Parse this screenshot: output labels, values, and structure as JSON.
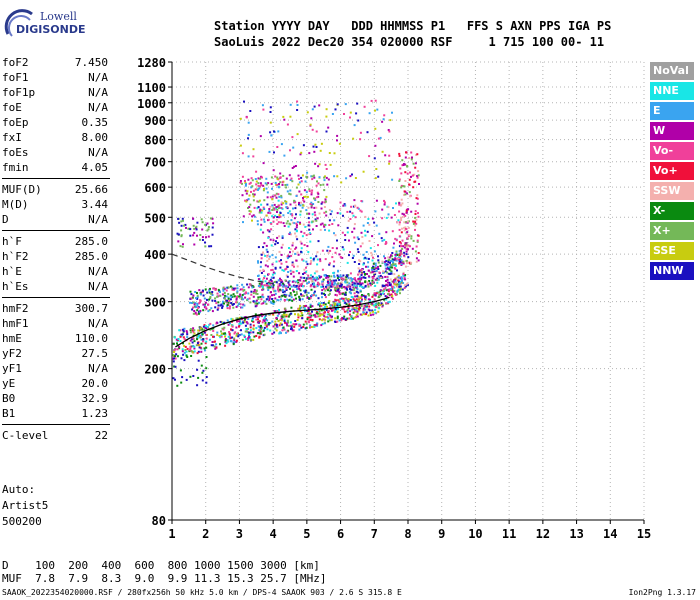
{
  "logo": {
    "line1": "Lowell",
    "line2": "DIGISONDE"
  },
  "header": {
    "line1": "Station YYYY DAY   DDD HHMMSS P1   FFS S AXN PPS IGA PS",
    "line2": "SaoLuis 2022 Dec20 354 020000 RSF     1 715 100 00- 11"
  },
  "params": {
    "group1": [
      {
        "name": "foF2",
        "value": "7.450"
      },
      {
        "name": "foF1",
        "value": "N/A"
      },
      {
        "name": "foF1p",
        "value": "N/A"
      },
      {
        "name": "foE",
        "value": "N/A"
      },
      {
        "name": "foEp",
        "value": "0.35"
      },
      {
        "name": "fxI",
        "value": "8.00"
      },
      {
        "name": "foEs",
        "value": "N/A"
      },
      {
        "name": "fmin",
        "value": "4.05"
      }
    ],
    "group2": [
      {
        "name": "MUF(D)",
        "value": "25.66"
      },
      {
        "name": "M(D)",
        "value": "3.44"
      },
      {
        "name": "D",
        "value": "N/A"
      }
    ],
    "group3": [
      {
        "name": "h`F",
        "value": "285.0"
      },
      {
        "name": "h`F2",
        "value": "285.0"
      },
      {
        "name": "h`E",
        "value": "N/A"
      },
      {
        "name": "h`Es",
        "value": "N/A"
      }
    ],
    "group4": [
      {
        "name": "hmF2",
        "value": "300.7"
      },
      {
        "name": "hmF1",
        "value": "N/A"
      },
      {
        "name": "hmE",
        "value": "110.0"
      },
      {
        "name": "yF2",
        "value": "27.5"
      },
      {
        "name": "yF1",
        "value": "N/A"
      },
      {
        "name": "yE",
        "value": "20.0"
      },
      {
        "name": "B0",
        "value": "32.9"
      },
      {
        "name": "B1",
        "value": "1.23"
      }
    ],
    "group5": [
      {
        "name": "C-level",
        "value": "22"
      }
    ]
  },
  "autoscaling": {
    "line1": "Auto:",
    "line2": "Artist5",
    "line3": "500200"
  },
  "legend": [
    {
      "label": "NoVal",
      "color": "#a0a0a0"
    },
    {
      "label": "NNE",
      "color": "#19e6e6"
    },
    {
      "label": "E",
      "color": "#3aa4f0"
    },
    {
      "label": "W",
      "color": "#b000a8"
    },
    {
      "label": "Vo-",
      "color": "#f0409a"
    },
    {
      "label": "Vo+",
      "color": "#f0103a"
    },
    {
      "label": "SSW",
      "color": "#f4b0ae"
    },
    {
      "label": "X-",
      "color": "#0a8a10"
    },
    {
      "label": "X+",
      "color": "#74b858"
    },
    {
      "label": "SSE",
      "color": "#c8cc10"
    },
    {
      "label": "NNW",
      "color": "#1a10c0"
    }
  ],
  "dmuf": {
    "d_line": "D    100  200  400  600  800 1000 1500 3000 [km]",
    "muf_line": "MUF  7.8  7.9  8.3  9.0  9.9 11.3 15.3 25.7 [MHz]"
  },
  "footer": {
    "file": "SAAOK_2022354020000.RSF / 280fx256h 50 kHz 5.0 km / DPS-4 SAAOK 903 / 2.6 S 315.8 E",
    "version": "Ion2Png 1.3.17"
  },
  "chart_data": {
    "type": "scatter",
    "title": "",
    "xlabel": "",
    "ylabel": "",
    "xlim": [
      1,
      15
    ],
    "ylim": [
      80,
      1280
    ],
    "yscale": "log",
    "x_ticks": [
      1,
      2,
      3,
      4,
      5,
      6,
      7,
      8,
      9,
      10,
      11,
      12,
      13,
      14,
      15
    ],
    "y_ticks": [
      80,
      200,
      300,
      400,
      500,
      600,
      700,
      800,
      900,
      1000,
      1100,
      1280
    ],
    "grid": true,
    "legend_position": "right",
    "point_size": 2,
    "trace_frequency_MHz": [
      1.1,
      1.5,
      2.0,
      2.5,
      3.0,
      3.5,
      4.0,
      4.5,
      5.0,
      5.5,
      6.0,
      6.5,
      7.0,
      7.3,
      7.45
    ],
    "profile_curve_height_km": [
      228,
      240,
      252,
      262,
      270,
      276,
      280,
      283,
      285,
      287,
      290,
      294,
      300,
      305,
      308
    ],
    "extension_dashed": {
      "x": [
        1.0,
        1.5,
        2.0,
        2.5,
        3.0,
        3.5,
        4.0
      ],
      "y": [
        400,
        385,
        370,
        358,
        348,
        340,
        335
      ]
    },
    "clusters": [
      {
        "name": "F-trace-low",
        "x": [
          1.0,
          7.9
        ],
        "y": [
          215,
          330
        ],
        "count": 950,
        "colors": [
          "W",
          "NNW",
          "X-",
          "X+",
          "Vo-",
          "SSE",
          "E",
          "NNE",
          "Vo+"
        ]
      },
      {
        "name": "F-trace-high",
        "x": [
          1.5,
          7.8
        ],
        "y": [
          300,
          400
        ],
        "count": 700,
        "colors": [
          "W",
          "NNW",
          "Vo-",
          "X-",
          "X+",
          "E"
        ]
      },
      {
        "name": "spread-F",
        "x": [
          3.5,
          8.0
        ],
        "y": [
          330,
          560
        ],
        "count": 650,
        "colors": [
          "W",
          "NNW",
          "E",
          "NNE",
          "Vo-",
          "SSW"
        ]
      },
      {
        "name": "second-hop",
        "x": [
          3.0,
          5.6
        ],
        "y": [
          480,
          650
        ],
        "count": 260,
        "colors": [
          "SSE",
          "X+",
          "W",
          "Vo-",
          "E"
        ]
      },
      {
        "name": "scatter-high",
        "x": [
          3.0,
          7.5
        ],
        "y": [
          620,
          1020
        ],
        "count": 140,
        "colors": [
          "W",
          "NNW",
          "SSE",
          "Vo-",
          "E"
        ]
      },
      {
        "name": "upper-left",
        "x": [
          1.1,
          2.2
        ],
        "y": [
          420,
          500
        ],
        "count": 60,
        "colors": [
          "NNW",
          "W",
          "X+"
        ]
      },
      {
        "name": "foF2-cusp",
        "x": [
          7.7,
          8.3
        ],
        "y": [
          380,
          750
        ],
        "count": 160,
        "colors": [
          "Vo-",
          "Vo+",
          "W",
          "SSW",
          "X+"
        ]
      },
      {
        "name": "low-noise",
        "x": [
          1.0,
          2.0
        ],
        "y": [
          180,
          220
        ],
        "count": 30,
        "colors": [
          "X-",
          "NNW"
        ]
      }
    ]
  }
}
